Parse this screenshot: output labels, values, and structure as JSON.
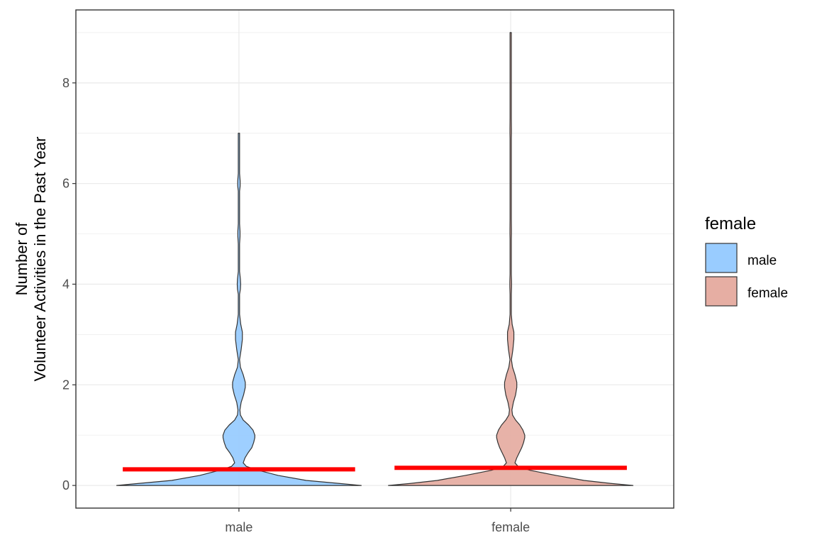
{
  "chart_data": {
    "type": "violin",
    "xlabel": "",
    "ylabel_lines": [
      "Number of",
      "Volunteer Activities in the Past Year"
    ],
    "categories": [
      "male",
      "female"
    ],
    "ylim": [
      -0.45,
      9.45
    ],
    "yticks": [
      0,
      2,
      4,
      6,
      8
    ],
    "grid": true,
    "legend": {
      "title": "female",
      "position": "right",
      "entries": [
        {
          "label": "male",
          "color": "#99ccff"
        },
        {
          "label": "female",
          "color": "#e6aea3"
        }
      ]
    },
    "series": [
      {
        "name": "male",
        "color": "#99ccff",
        "mean": 0.32,
        "max": 7,
        "density_profile": [
          [
            0,
            1.0
          ],
          [
            0.04,
            0.82
          ],
          [
            0.1,
            0.55
          ],
          [
            0.2,
            0.32
          ],
          [
            0.3,
            0.16
          ],
          [
            0.38,
            0.06
          ],
          [
            0.45,
            0.035
          ],
          [
            0.55,
            0.05
          ],
          [
            0.65,
            0.075
          ],
          [
            0.75,
            0.105
          ],
          [
            0.85,
            0.12
          ],
          [
            0.95,
            0.13
          ],
          [
            1.0,
            0.13
          ],
          [
            1.1,
            0.115
          ],
          [
            1.2,
            0.08
          ],
          [
            1.3,
            0.035
          ],
          [
            1.4,
            0.012
          ],
          [
            1.5,
            0.008
          ],
          [
            1.65,
            0.018
          ],
          [
            1.8,
            0.038
          ],
          [
            1.95,
            0.052
          ],
          [
            2.05,
            0.052
          ],
          [
            2.2,
            0.035
          ],
          [
            2.35,
            0.012
          ],
          [
            2.5,
            0.005
          ],
          [
            2.7,
            0.018
          ],
          [
            2.9,
            0.028
          ],
          [
            3.05,
            0.028
          ],
          [
            3.2,
            0.015
          ],
          [
            3.4,
            0.004
          ],
          [
            3.6,
            0.002
          ],
          [
            3.8,
            0.003
          ],
          [
            3.9,
            0.012
          ],
          [
            4.0,
            0.014
          ],
          [
            4.1,
            0.012
          ],
          [
            4.25,
            0.004
          ],
          [
            4.5,
            0.002
          ],
          [
            4.8,
            0.002
          ],
          [
            4.95,
            0.009
          ],
          [
            5.05,
            0.009
          ],
          [
            5.2,
            0.002
          ],
          [
            5.5,
            0.002
          ],
          [
            5.85,
            0.003
          ],
          [
            5.95,
            0.01
          ],
          [
            6.05,
            0.01
          ],
          [
            6.2,
            0.003
          ],
          [
            6.5,
            0.002
          ],
          [
            6.8,
            0.002
          ],
          [
            7.0,
            0.002
          ]
        ]
      },
      {
        "name": "female",
        "color": "#e6aea3",
        "mean": 0.35,
        "max": 9,
        "density_profile": [
          [
            0,
            1.0
          ],
          [
            0.04,
            0.82
          ],
          [
            0.1,
            0.6
          ],
          [
            0.2,
            0.37
          ],
          [
            0.3,
            0.16
          ],
          [
            0.38,
            0.06
          ],
          [
            0.45,
            0.035
          ],
          [
            0.55,
            0.05
          ],
          [
            0.65,
            0.07
          ],
          [
            0.75,
            0.09
          ],
          [
            0.85,
            0.105
          ],
          [
            0.95,
            0.115
          ],
          [
            1.0,
            0.115
          ],
          [
            1.1,
            0.1
          ],
          [
            1.2,
            0.075
          ],
          [
            1.3,
            0.04
          ],
          [
            1.4,
            0.015
          ],
          [
            1.5,
            0.01
          ],
          [
            1.65,
            0.022
          ],
          [
            1.8,
            0.04
          ],
          [
            1.95,
            0.05
          ],
          [
            2.05,
            0.05
          ],
          [
            2.2,
            0.035
          ],
          [
            2.35,
            0.015
          ],
          [
            2.5,
            0.006
          ],
          [
            2.7,
            0.018
          ],
          [
            2.9,
            0.026
          ],
          [
            3.05,
            0.026
          ],
          [
            3.2,
            0.012
          ],
          [
            3.4,
            0.004
          ],
          [
            3.6,
            0.003
          ],
          [
            3.8,
            0.003
          ],
          [
            3.95,
            0.007
          ],
          [
            4.05,
            0.007
          ],
          [
            4.2,
            0.003
          ],
          [
            4.5,
            0.002
          ],
          [
            4.9,
            0.002
          ],
          [
            5.0,
            0.006
          ],
          [
            5.1,
            0.006
          ],
          [
            5.3,
            0.002
          ],
          [
            5.7,
            0.002
          ],
          [
            6.2,
            0.002
          ],
          [
            6.9,
            0.002
          ],
          [
            7.0,
            0.006
          ],
          [
            7.1,
            0.006
          ],
          [
            7.3,
            0.002
          ],
          [
            8.0,
            0.002
          ],
          [
            8.6,
            0.002
          ],
          [
            9.0,
            0.002
          ]
        ]
      }
    ]
  }
}
